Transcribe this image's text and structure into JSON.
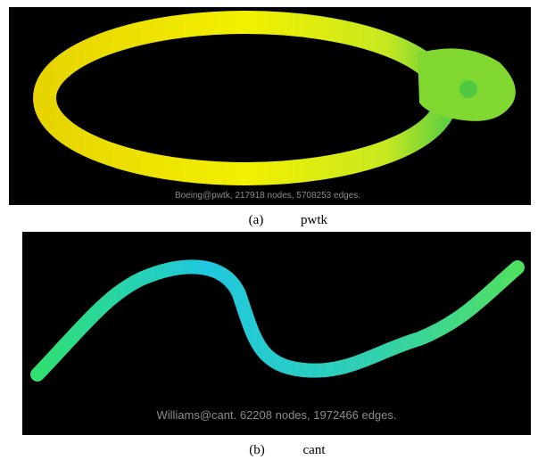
{
  "panels": [
    {
      "image_caption": "Boeing@pwtk, 217918 nodes, 5708253 edges.",
      "label": "(a)",
      "name": "pwtk"
    },
    {
      "image_caption": "Williams@cant. 62208 nodes, 1972466 edges.",
      "label": "(b)",
      "name": "cant"
    }
  ]
}
